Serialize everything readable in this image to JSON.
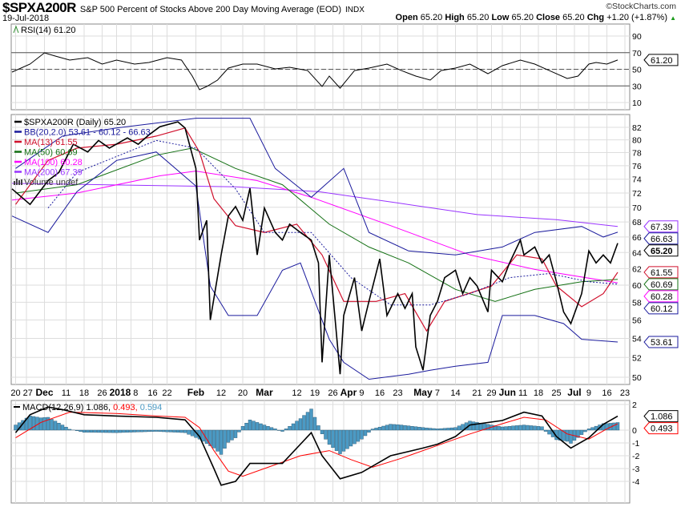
{
  "header": {
    "symbol": "$SPXA200R",
    "name": "S&P 500 Percent of Stocks Above 200 Day Moving Average (EOD)",
    "exchange": "INDX",
    "date": "19-Jul-2018",
    "watermark": "©StockCharts.com",
    "open_label": "Open",
    "open": "65.20",
    "high_label": "High",
    "high": "65.20",
    "low_label": "Low",
    "low": "65.20",
    "close_label": "Close",
    "close": "65.20",
    "chg_label": "Chg",
    "chg": "+1.20 (+1.87%)",
    "chg_icon": "up-triangle-icon"
  },
  "chart_data": [
    {
      "type": "line",
      "title": "RSI(14) 61.20",
      "x_unit": "trading day index",
      "xlim": [
        0,
        171
      ],
      "ylim": [
        0,
        100
      ],
      "yticks": [
        10,
        30,
        50,
        70,
        90
      ],
      "ref_lines": [
        30,
        50,
        70
      ],
      "last_label": "61.20",
      "x": [
        0,
        5,
        9,
        12,
        16,
        21,
        25,
        29,
        34,
        38,
        43,
        47,
        50,
        52,
        54,
        57,
        60,
        64,
        68,
        73,
        77,
        82,
        86,
        88,
        91,
        95,
        99,
        104,
        108,
        112,
        116,
        119,
        123,
        127,
        132,
        136,
        141,
        145,
        149,
        154,
        157,
        160,
        162,
        165,
        168
      ],
      "values": [
        46.6,
        56.3,
        69.8,
        65.9,
        61.1,
        64.0,
        56.3,
        61.1,
        56.3,
        58.2,
        64.0,
        61.1,
        41.8,
        25.4,
        29.3,
        37.0,
        51.4,
        56.3,
        56.3,
        50.5,
        52.4,
        48.5,
        29.3,
        41.8,
        27.3,
        48.5,
        51.4,
        56.3,
        48.5,
        41.8,
        37.0,
        48.5,
        51.4,
        56.3,
        44.7,
        54.3,
        61.1,
        56.3,
        48.5,
        38.9,
        41.8,
        56.3,
        58.2,
        56.3,
        61.2
      ]
    },
    {
      "type": "line",
      "title": "$SPXA200R (Daily) 65.20",
      "x_unit": "trading day index",
      "xlim": [
        0,
        171
      ],
      "ylim": [
        49.5,
        84
      ],
      "scale": "log",
      "yticks": [
        50,
        52,
        54,
        56,
        58,
        60,
        62,
        64,
        66,
        68,
        70,
        72,
        74,
        76,
        78,
        80,
        82
      ],
      "xticks": [
        {
          "d": 1,
          "l": "20"
        },
        {
          "d": 4,
          "l": "27"
        },
        {
          "d": 9,
          "l": "Dec",
          "b": true
        },
        {
          "d": 15,
          "l": "11"
        },
        {
          "d": 20,
          "l": "18"
        },
        {
          "d": 25,
          "l": "26"
        },
        {
          "d": 29,
          "l": "2018",
          "b": true
        },
        {
          "d": 33,
          "l": "8"
        },
        {
          "d": 39,
          "l": "16"
        },
        {
          "d": 43,
          "l": "22"
        },
        {
          "d": 51,
          "l": "Feb",
          "b": true
        },
        {
          "d": 58,
          "l": "12"
        },
        {
          "d": 64,
          "l": "20"
        },
        {
          "d": 70,
          "l": "Mar",
          "b": true
        },
        {
          "d": 79,
          "l": "12"
        },
        {
          "d": 84,
          "l": "19"
        },
        {
          "d": 89,
          "l": "26"
        },
        {
          "d": 92,
          "l": "Apr",
          "b": true
        },
        {
          "d": 97,
          "l": "9"
        },
        {
          "d": 102,
          "l": "16"
        },
        {
          "d": 107,
          "l": "23"
        },
        {
          "d": 114,
          "l": "May",
          "b": true
        },
        {
          "d": 118,
          "l": "7"
        },
        {
          "d": 123,
          "l": "14"
        },
        {
          "d": 129,
          "l": "21"
        },
        {
          "d": 133,
          "l": "29"
        },
        {
          "d": 136,
          "l": "Jun",
          "b": true
        },
        {
          "d": 141,
          "l": "11"
        },
        {
          "d": 146,
          "l": "18"
        },
        {
          "d": 151,
          "l": "25"
        },
        {
          "d": 156,
          "l": "Jul",
          "b": true
        },
        {
          "d": 160,
          "l": "9"
        },
        {
          "d": 165,
          "l": "16"
        },
        {
          "d": 170,
          "l": "23"
        }
      ],
      "series": [
        {
          "name": "$SPXA200R (Daily) 65.20",
          "color": "#000000",
          "width": 1.6,
          "last": "65.20",
          "x": [
            0,
            5,
            10,
            13,
            17,
            21,
            24,
            27,
            32,
            35,
            38,
            41,
            46,
            48,
            51,
            52,
            54,
            55,
            58,
            60,
            62,
            64,
            66,
            68,
            70,
            73,
            75,
            77,
            80,
            83,
            85,
            86,
            88,
            91,
            92,
            95,
            97,
            99,
            102,
            104,
            107,
            109,
            111,
            112,
            114,
            116,
            118,
            120,
            123,
            125,
            127,
            129,
            132,
            133,
            136,
            138,
            141,
            142,
            145,
            147,
            149,
            151,
            153,
            155,
            158,
            160,
            162,
            164,
            166,
            168
          ],
          "values": [
            72.6,
            70.4,
            73.8,
            75.0,
            79.3,
            78.1,
            79.9,
            78.7,
            80.3,
            79.3,
            80.8,
            82.1,
            82.9,
            81.9,
            75.6,
            65.6,
            68.2,
            56.0,
            63.7,
            68.8,
            70.1,
            68.2,
            72.7,
            63.7,
            69.9,
            66.6,
            65.6,
            67.7,
            66.6,
            65.6,
            62.7,
            51.5,
            63.7,
            50.3,
            56.5,
            60.9,
            54.8,
            58.1,
            63.2,
            56.5,
            59.0,
            57.3,
            59.0,
            53.1,
            50.7,
            56.5,
            58.1,
            60.9,
            61.8,
            59.0,
            60.9,
            59.9,
            56.9,
            61.8,
            60.4,
            62.7,
            65.6,
            63.7,
            64.7,
            62.7,
            63.7,
            60.4,
            56.9,
            55.6,
            59.0,
            64.2,
            62.7,
            63.7,
            62.7,
            65.2
          ]
        },
        {
          "name": "BB(20,2.0) 53.61 - 60.12 - 66.63",
          "color": "#1a1a9c",
          "width": 1,
          "part": "upper",
          "last": "66.63",
          "x": [
            1,
            14,
            29,
            51,
            66,
            73,
            83,
            92,
            99,
            110,
            123,
            136,
            145,
            158,
            164,
            168
          ],
          "values": [
            75.6,
            80.6,
            81.9,
            83.5,
            83.5,
            75.6,
            71.4,
            75.6,
            66.6,
            64.2,
            63.7,
            64.7,
            66.6,
            67.4,
            66.0,
            66.63
          ]
        },
        {
          "name": "BB middle",
          "color": "#1a1a9c",
          "width": 1,
          "dash": "2,2",
          "part": "middle",
          "last": "60.12",
          "x": [
            10,
            18,
            40,
            51,
            62,
            70,
            83,
            94,
            105,
            116,
            127,
            138,
            149,
            160,
            168
          ],
          "values": [
            69.9,
            75.0,
            79.9,
            78.7,
            72.6,
            66.6,
            66.6,
            60.9,
            57.7,
            57.7,
            59.0,
            60.9,
            61.4,
            60.4,
            60.12
          ]
        },
        {
          "name": "BB lower",
          "color": "#1a1a9c",
          "width": 1,
          "part": "lower",
          "last": "53.61",
          "x": [
            0,
            10,
            18,
            29,
            40,
            51,
            55,
            60,
            68,
            75,
            80,
            88,
            92,
            99,
            110,
            116,
            123,
            132,
            136,
            145,
            153,
            158,
            168
          ],
          "values": [
            68.8,
            66.6,
            72.2,
            76.8,
            78.1,
            73.0,
            59.9,
            56.5,
            56.5,
            61.8,
            62.7,
            53.9,
            51.5,
            49.8,
            50.3,
            50.7,
            51.1,
            51.5,
            56.5,
            56.5,
            55.6,
            53.9,
            53.61
          ]
        },
        {
          "name": "MA(13) 61.55",
          "color": "#d0102c",
          "width": 1.2,
          "last": "61.55",
          "x": [
            1,
            10,
            18,
            29,
            40,
            48,
            52,
            56,
            62,
            70,
            79,
            86,
            92,
            101,
            109,
            115,
            120,
            133,
            140,
            147,
            151,
            158,
            164,
            168
          ],
          "values": [
            70.4,
            76.8,
            78.7,
            79.3,
            80.6,
            81.9,
            78.1,
            71.2,
            67.5,
            66.6,
            67.7,
            63.7,
            58.1,
            58.1,
            59.0,
            54.8,
            58.1,
            59.9,
            63.7,
            63.2,
            59.9,
            57.5,
            59.0,
            61.55
          ]
        },
        {
          "name": "MA(50) 60.69",
          "color": "#137013",
          "width": 1,
          "last": "60.69",
          "x": [
            1,
            18,
            40,
            50,
            62,
            75,
            88,
            99,
            110,
            123,
            134,
            145,
            158,
            168
          ],
          "values": [
            72.0,
            73.2,
            77.6,
            78.7,
            75.6,
            73.2,
            67.7,
            64.7,
            62.7,
            59.5,
            58.1,
            59.5,
            60.4,
            60.69
          ]
        },
        {
          "name": "MA(100) 60.28",
          "color": "#ff00ff",
          "width": 1,
          "last": "60.28",
          "x": [
            0,
            18,
            41,
            51,
            68,
            83,
            105,
            127,
            145,
            168
          ],
          "values": [
            71.0,
            72.0,
            74.5,
            75.2,
            73.8,
            71.4,
            67.5,
            63.7,
            61.9,
            60.28
          ]
        },
        {
          "name": "MA(200) 67.39",
          "color": "#9933ff",
          "width": 1,
          "last": "67.39",
          "x": [
            0,
            62,
            85,
            107,
            129,
            151,
            168
          ],
          "values": [
            73.4,
            72.9,
            72.2,
            70.6,
            69.0,
            68.3,
            67.39
          ]
        }
      ],
      "legend_extra": "Volume undef"
    },
    {
      "type": "line",
      "title": "MACD(12,26,9)",
      "legend_values": [
        "1.086,",
        "0.493,",
        "0.594"
      ],
      "x_unit": "trading day index",
      "xlim": [
        0,
        171
      ],
      "ylim": [
        -5.6,
        2.5
      ],
      "yticks": [
        2,
        0,
        -1,
        -2,
        -3,
        -4
      ],
      "macd": {
        "color": "#000000",
        "last": "1.086",
        "x": [
          1,
          5,
          10,
          14,
          20,
          29,
          40,
          48,
          52,
          56,
          58,
          62,
          66,
          75,
          83,
          86,
          91,
          97,
          105,
          114,
          118,
          123,
          127,
          136,
          142,
          147,
          151,
          155,
          160,
          164,
          168
        ],
        "values": [
          -0.2,
          1.2,
          1.8,
          1.6,
          1.2,
          1.1,
          1.0,
          0.8,
          -0.5,
          -3.0,
          -4.3,
          -4.0,
          -2.6,
          -2.6,
          -0.2,
          -2.0,
          -3.8,
          -3.3,
          -2.0,
          -1.4,
          -1.1,
          -0.5,
          0.4,
          0.75,
          1.4,
          1.1,
          -0.5,
          -1.4,
          -0.6,
          0.45,
          1.086
        ]
      },
      "signal": {
        "color": "#ff0000",
        "last": "0.493",
        "x": [
          1,
          8,
          16,
          29,
          40,
          48,
          52,
          56,
          60,
          64,
          70,
          80,
          88,
          94,
          100,
          108,
          118,
          127,
          136,
          142,
          148,
          154,
          160,
          165,
          168
        ],
        "values": [
          -0.6,
          0.6,
          1.4,
          1.3,
          1.1,
          1.0,
          0.2,
          -1.6,
          -3.2,
          -3.6,
          -3.0,
          -2.0,
          -1.6,
          -2.3,
          -2.9,
          -2.2,
          -1.2,
          -0.3,
          0.5,
          1.0,
          0.8,
          -0.3,
          -0.7,
          0.1,
          0.493
        ]
      },
      "histogram_color": "#4b9ac4"
    }
  ]
}
